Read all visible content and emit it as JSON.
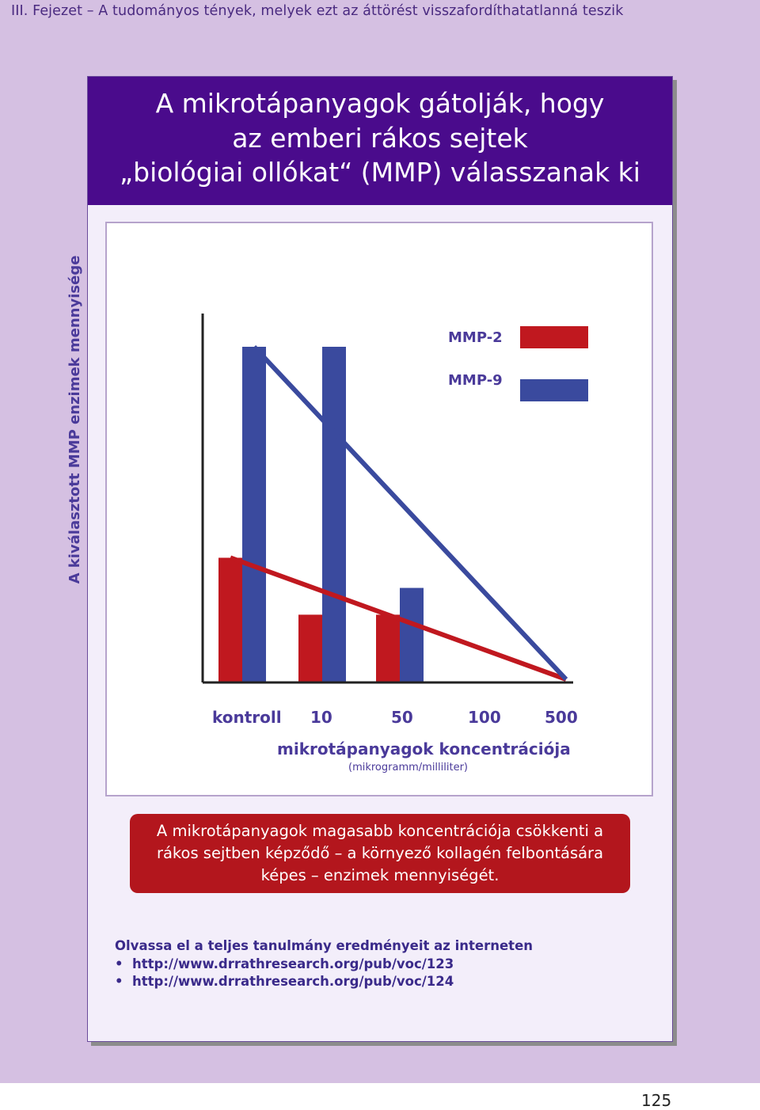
{
  "header": "III. Fejezet – A tudományos tények, melyek ezt az áttörést visszafordíthatatlanná teszik",
  "title_lines": [
    "A mikrotápanyagok gátolják, hogy",
    "az emberi rákos sejtek",
    "„biológiai ollókat“ (MMP) válasszanak ki"
  ],
  "chart_data": {
    "type": "bar",
    "categories": [
      "kontroll",
      "10",
      "50",
      "100",
      "500"
    ],
    "series": [
      {
        "name": "MMP-2",
        "color": "#c0181f",
        "values": [
          37,
          20,
          20,
          0,
          0
        ]
      },
      {
        "name": "MMP-9",
        "color": "#3a4a9e",
        "values": [
          100,
          100,
          28,
          0,
          0
        ]
      }
    ],
    "ylabel": "A kiválasztott MMP enzimek mennyisége",
    "xlabel": "mikrotápanyagok koncentrációja",
    "xlabel_unit": "(mikrogramm/milliliter)",
    "ylim": [
      0,
      100
    ],
    "legend_position": "top-right",
    "grid": false
  },
  "callout_lines": [
    "A mikrotápanyagok magasabb koncentrációja csökkenti a",
    "rákos sejtben képződő – a környező kollagén felbontására",
    "képes – enzimek mennyiségét."
  ],
  "readmore": "Olvassa el a teljes tanulmány eredményeit az interneten",
  "links": [
    "http://www.drrathresearch.org/pub/voc/123",
    "http://www.drrathresearch.org/pub/voc/124"
  ],
  "bullet": "•",
  "page_number": "125"
}
